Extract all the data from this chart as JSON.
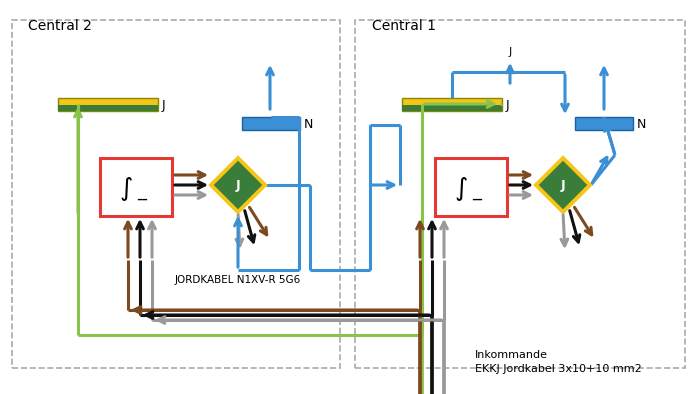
{
  "bg_color": "#ffffff",
  "central2_label": "Central 2",
  "central1_label": "Central 1",
  "jordkabel_label": "JORDKABEL N1XV-R 5G6",
  "inkommande_label1": "Inkommande",
  "inkommande_label2": "EKKJ Jordkabel 3x10+10 mm2",
  "colors": {
    "green": "#5BBD4E",
    "yellow_green": "#8BC34A",
    "brown": "#7B4A1E",
    "black": "#111111",
    "gray": "#999999",
    "blue": "#3B8FD4",
    "yellow": "#F5C518",
    "dark_green": "#3A7D3A",
    "red": "#E53935",
    "white": "#FFFFFF"
  }
}
